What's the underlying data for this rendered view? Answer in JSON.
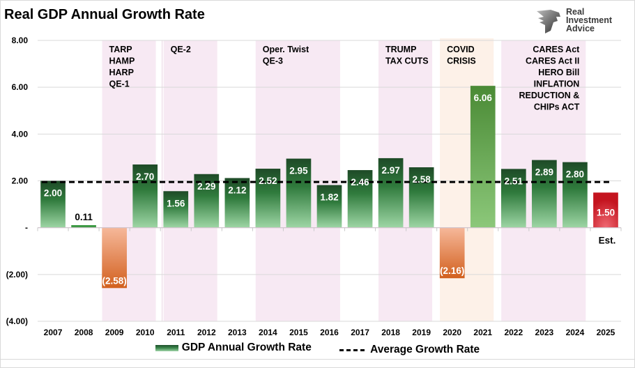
{
  "logo": {
    "line1": "Real",
    "line2": "Investment",
    "line3": "Advice"
  },
  "chart_data": {
    "type": "bar",
    "title": "Real GDP Annual Growth Rate",
    "xlabel": "",
    "ylabel": "",
    "ylim": [
      -4,
      8
    ],
    "yticks": [
      8,
      6,
      4,
      2,
      0,
      -2,
      -4
    ],
    "ytick_labels": [
      "8.00",
      "6.00",
      "4.00",
      "2.00",
      "-",
      "(2.00)",
      "(4.00)"
    ],
    "grid": true,
    "categories": [
      "2007",
      "2008",
      "2009",
      "2010",
      "2011",
      "2012",
      "2013",
      "2014",
      "2015",
      "2016",
      "2017",
      "2018",
      "2019",
      "2020",
      "2021",
      "2022",
      "2023",
      "2024",
      "2025"
    ],
    "series": [
      {
        "name": "GDP Annual Growth Rate",
        "type": "bar",
        "values": [
          2.0,
          0.11,
          -2.58,
          2.7,
          1.56,
          2.29,
          2.12,
          2.52,
          2.95,
          1.82,
          2.46,
          2.97,
          2.58,
          -2.16,
          6.06,
          2.51,
          2.89,
          2.8,
          1.5
        ],
        "labels": [
          "2.00",
          "0.11",
          "(2.58)",
          "2.70",
          "1.56",
          "2.29",
          "2.12",
          "2.52",
          "2.95",
          "1.82",
          "2.46",
          "2.97",
          "2.58",
          "(2.16)",
          "6.06",
          "2.51",
          "2.89",
          "2.80",
          "1.50"
        ]
      },
      {
        "name": "Average Growth Rate",
        "type": "line",
        "style": "dashed",
        "value": 1.95
      }
    ],
    "colors": {
      "positive_top": "#1e4a27",
      "positive_mid": "#2f7a3c",
      "positive_bottom": "#9ed6a5",
      "negative_top": "#f6b89a",
      "negative_bottom": "#d2601e",
      "covid_top": "#4a8a35",
      "covid_bottom": "#8cc87a",
      "estimate_top": "#c4141f",
      "estimate_bottom": "#f06a74",
      "policy_band": "#f7e9f3",
      "crisis_band": "#fdf1e8",
      "average_line": "#000000",
      "gridline": "#d9d9d9"
    },
    "bands": [
      {
        "from": "2009",
        "to": "2010",
        "kind": "policy",
        "label": [
          "TARP",
          "HAMP",
          "HARP",
          "QE-1"
        ],
        "align": "left"
      },
      {
        "from": "2011",
        "to": "2012",
        "kind": "policy",
        "label": [
          "QE-2"
        ],
        "align": "left"
      },
      {
        "from": "2014",
        "to": "2016",
        "kind": "policy",
        "label": [
          "Oper. Twist",
          "QE-3"
        ],
        "align": "left"
      },
      {
        "from": "2018",
        "to": "2019",
        "kind": "policy",
        "label": [
          "TRUMP",
          "TAX CUTS"
        ],
        "align": "left"
      },
      {
        "from": "2020",
        "to": "2021",
        "kind": "crisis",
        "label": [
          "COVID",
          "CRISIS"
        ],
        "align": "left"
      },
      {
        "from": "2022",
        "to": "2024",
        "kind": "policy",
        "label": [
          "CARES Act",
          "CARES Act II",
          "HERO Bill",
          "INFLATION",
          "REDUCTION &",
          "CHIPs ACT"
        ],
        "align": "right"
      }
    ],
    "annotations": [
      {
        "category": "2025",
        "text": "Est."
      }
    ],
    "legend": {
      "position": "bottom",
      "entries": [
        "GDP Annual Growth Rate",
        "Average Growth Rate"
      ]
    }
  }
}
